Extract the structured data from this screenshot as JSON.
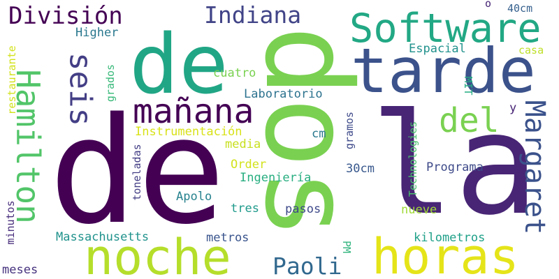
{
  "words": [
    {
      "text": "de",
      "color": "#440154"
    },
    {
      "text": "la",
      "color": "#482575"
    },
    {
      "text": "dos",
      "color": "#7ad151"
    },
    {
      "text": "de",
      "color": "#21a685"
    },
    {
      "text": "tarde",
      "color": "#3b528b"
    },
    {
      "text": "noche",
      "color": "#b5de2b"
    },
    {
      "text": "horas",
      "color": "#e5e419"
    },
    {
      "text": "Software",
      "color": "#22a884"
    },
    {
      "text": "Hamilton",
      "color": "#52c569"
    },
    {
      "text": "mañana",
      "color": "#440154"
    },
    {
      "text": "seis",
      "color": "#433e85"
    },
    {
      "text": "del",
      "color": "#7ad151"
    },
    {
      "text": "Margaret",
      "color": "#3b528b"
    },
    {
      "text": "División",
      "color": "#440154"
    },
    {
      "text": "Indiana",
      "color": "#414487"
    },
    {
      "text": "Paoli",
      "color": "#31688e"
    },
    {
      "text": "40cm",
      "color": "#35608d"
    },
    {
      "text": "o",
      "color": "#482777"
    },
    {
      "text": "Higher",
      "color": "#2a788e"
    },
    {
      "text": "Espacial",
      "color": "#21918c"
    },
    {
      "text": "casa",
      "color": "#bddf26"
    },
    {
      "text": "cuatro",
      "color": "#7ad151"
    },
    {
      "text": "Laboratorio",
      "color": "#2c728e"
    },
    {
      "text": "Instrumentación",
      "color": "#d8e219"
    },
    {
      "text": "media",
      "color": "#c8e020"
    },
    {
      "text": "cm",
      "color": "#2a788e"
    },
    {
      "text": "Order",
      "color": "#d2e21b"
    },
    {
      "text": "Ingeniería",
      "color": "#28ae80"
    },
    {
      "text": "30cm",
      "color": "#38588c"
    },
    {
      "text": "Programa",
      "color": "#3e4a89"
    },
    {
      "text": "Apolo",
      "color": "#26828e"
    },
    {
      "text": "tres",
      "color": "#1f9a8a"
    },
    {
      "text": "pasos",
      "color": "#3e4989"
    },
    {
      "text": "nueve",
      "color": "#a0da39"
    },
    {
      "text": "Massachusetts",
      "color": "#20928c"
    },
    {
      "text": "metros",
      "color": "#3a548c"
    },
    {
      "text": "kilometros",
      "color": "#1fa088"
    },
    {
      "text": "meses",
      "color": "#46327e"
    },
    {
      "text": "restaurante",
      "color": "#d2e21b"
    },
    {
      "text": "minutos",
      "color": "#472d7b"
    },
    {
      "text": "grados",
      "color": "#37b878"
    },
    {
      "text": "toneladas",
      "color": "#433e85"
    },
    {
      "text": "MIT",
      "color": "#25ab82"
    },
    {
      "text": "gramos",
      "color": "#3e4a89"
    },
    {
      "text": "Technologies",
      "color": "#4ac16d"
    },
    {
      "text": "PM",
      "color": "#2fb47c"
    },
    {
      "text": "y",
      "color": "#482475"
    }
  ]
}
